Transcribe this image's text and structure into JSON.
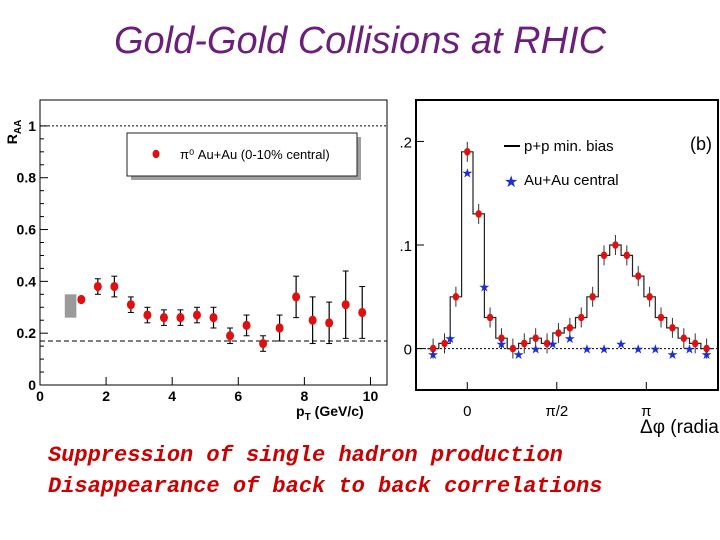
{
  "title": "Gold-Gold Collisions at RHIC",
  "caption": {
    "line1": "Suppression of single hadron production",
    "line2": "Disappearance of back to back correlations"
  },
  "colors": {
    "title": "#6b1f7b",
    "caption": "#cc0000",
    "marker_red": "#e01010",
    "marker_blue": "#1a2fd0"
  },
  "chart_data": [
    {
      "type": "scatter",
      "ylabel": "R",
      "ylabel_sub": "AA",
      "xlabel": "p",
      "xlabel_sub": "T",
      "xlabel_unit": "(GeV/c)",
      "xlim": [
        0,
        10.5
      ],
      "ylim": [
        0,
        1.1
      ],
      "x_ticks": [
        "0",
        "2",
        "4",
        "6",
        "8",
        "10"
      ],
      "y_ticks": [
        "0",
        "0.2",
        "0.4",
        "0.6",
        "0.8",
        "1"
      ],
      "legend": "π⁰ Au+Au (0-10% central)",
      "legend_position": "top",
      "reference_lines": [
        1.0,
        0.17
      ],
      "series": [
        {
          "name": "π⁰ Au+Au (0-10% central)",
          "x": [
            1.25,
            1.75,
            2.25,
            2.75,
            3.25,
            3.75,
            4.25,
            4.75,
            5.25,
            5.75,
            6.25,
            6.75,
            7.25,
            7.75,
            8.25,
            8.75,
            9.25,
            9.75
          ],
          "y": [
            0.33,
            0.38,
            0.38,
            0.31,
            0.27,
            0.26,
            0.26,
            0.27,
            0.26,
            0.19,
            0.23,
            0.16,
            0.22,
            0.34,
            0.25,
            0.24,
            0.31,
            0.28
          ],
          "err": [
            0.01,
            0.03,
            0.04,
            0.03,
            0.03,
            0.03,
            0.03,
            0.03,
            0.04,
            0.03,
            0.04,
            0.03,
            0.05,
            0.08,
            0.09,
            0.08,
            0.13,
            0.1
          ]
        }
      ]
    },
    {
      "type": "line",
      "panel_label": "(b)",
      "xlabel": "Δφ (radians)",
      "x_ticks": [
        "0",
        "π/2",
        "π"
      ],
      "y_ticks": [
        "0",
        "0.1",
        "0.2"
      ],
      "xlim": [
        -0.9,
        4.4
      ],
      "ylim": [
        -0.04,
        0.24
      ],
      "legend_position": "top-right",
      "series": [
        {
          "name": "p+p min. bias",
          "style": "histogram+markers",
          "x": [
            -0.6,
            -0.4,
            -0.2,
            0.0,
            0.2,
            0.4,
            0.6,
            0.8,
            1.0,
            1.2,
            1.4,
            1.6,
            1.8,
            2.0,
            2.2,
            2.4,
            2.6,
            2.8,
            3.0,
            3.2,
            3.4,
            3.6,
            3.8,
            4.0,
            4.2
          ],
          "y": [
            0.0,
            0.005,
            0.05,
            0.19,
            0.13,
            0.03,
            0.01,
            0.0,
            0.005,
            0.01,
            0.005,
            0.015,
            0.02,
            0.03,
            0.05,
            0.09,
            0.1,
            0.09,
            0.07,
            0.05,
            0.03,
            0.02,
            0.01,
            0.005,
            0.0
          ]
        },
        {
          "name": "Au+Au central",
          "style": "stars",
          "x": [
            -0.6,
            -0.3,
            0.0,
            0.3,
            0.6,
            0.9,
            1.2,
            1.5,
            1.8,
            2.1,
            2.4,
            2.7,
            3.0,
            3.3,
            3.6,
            3.9,
            4.2
          ],
          "y": [
            -0.005,
            0.01,
            0.17,
            0.06,
            0.005,
            -0.005,
            0.0,
            0.005,
            0.01,
            0.0,
            0.0,
            0.005,
            0.0,
            0.0,
            -0.005,
            0.0,
            -0.005
          ]
        }
      ]
    }
  ]
}
